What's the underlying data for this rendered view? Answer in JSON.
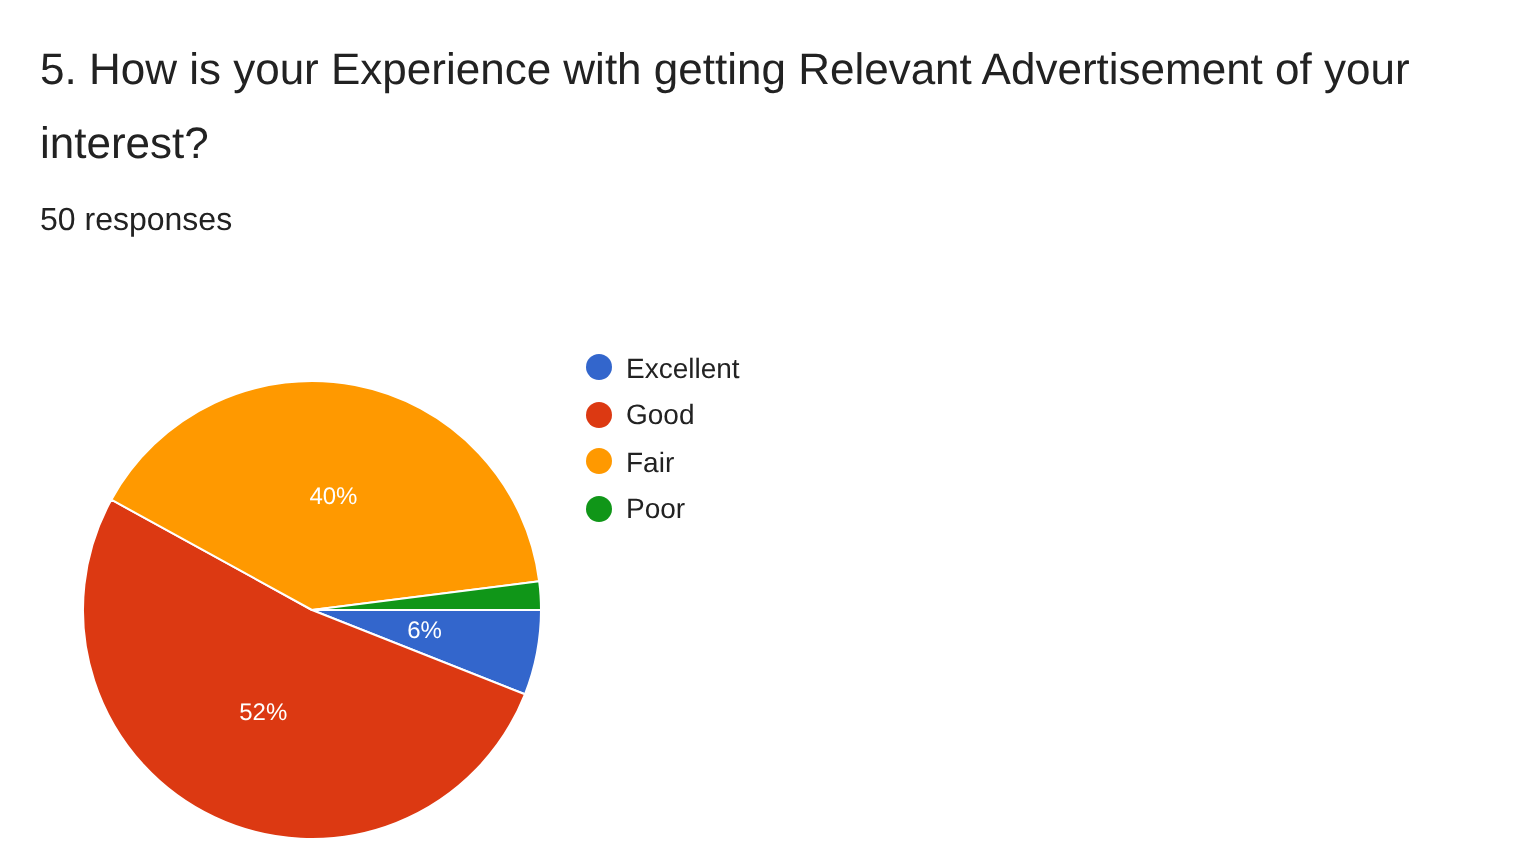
{
  "chart_data": {
    "type": "pie",
    "title": "5. How is your Experience with getting Relevant Advertisement of your interest?",
    "subtitle": "50 responses",
    "categories": [
      "Excellent",
      "Good",
      "Fair",
      "Poor"
    ],
    "values": [
      6,
      52,
      40,
      2
    ],
    "colors": [
      "#3366cc",
      "#dc3912",
      "#ff9900",
      "#109618"
    ],
    "value_labels": [
      "6%",
      "52%",
      "40%",
      null
    ],
    "legend": "right"
  }
}
